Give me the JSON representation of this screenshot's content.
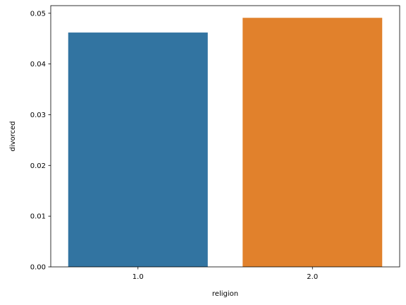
{
  "chart_data": {
    "type": "bar",
    "title": "",
    "xlabel": "religion",
    "ylabel": "divorced",
    "categories": [
      "1.0",
      "2.0"
    ],
    "values": [
      0.0462,
      0.0491
    ],
    "colors": [
      "#3274a1",
      "#e1812c"
    ],
    "ylim": [
      0,
      0.0515
    ],
    "yticks": [
      0.0,
      0.01,
      0.02,
      0.03,
      0.04,
      0.05
    ],
    "ytick_labels": [
      "0.00",
      "0.01",
      "0.02",
      "0.03",
      "0.04",
      "0.05"
    ],
    "grid": false,
    "legend": "none"
  }
}
